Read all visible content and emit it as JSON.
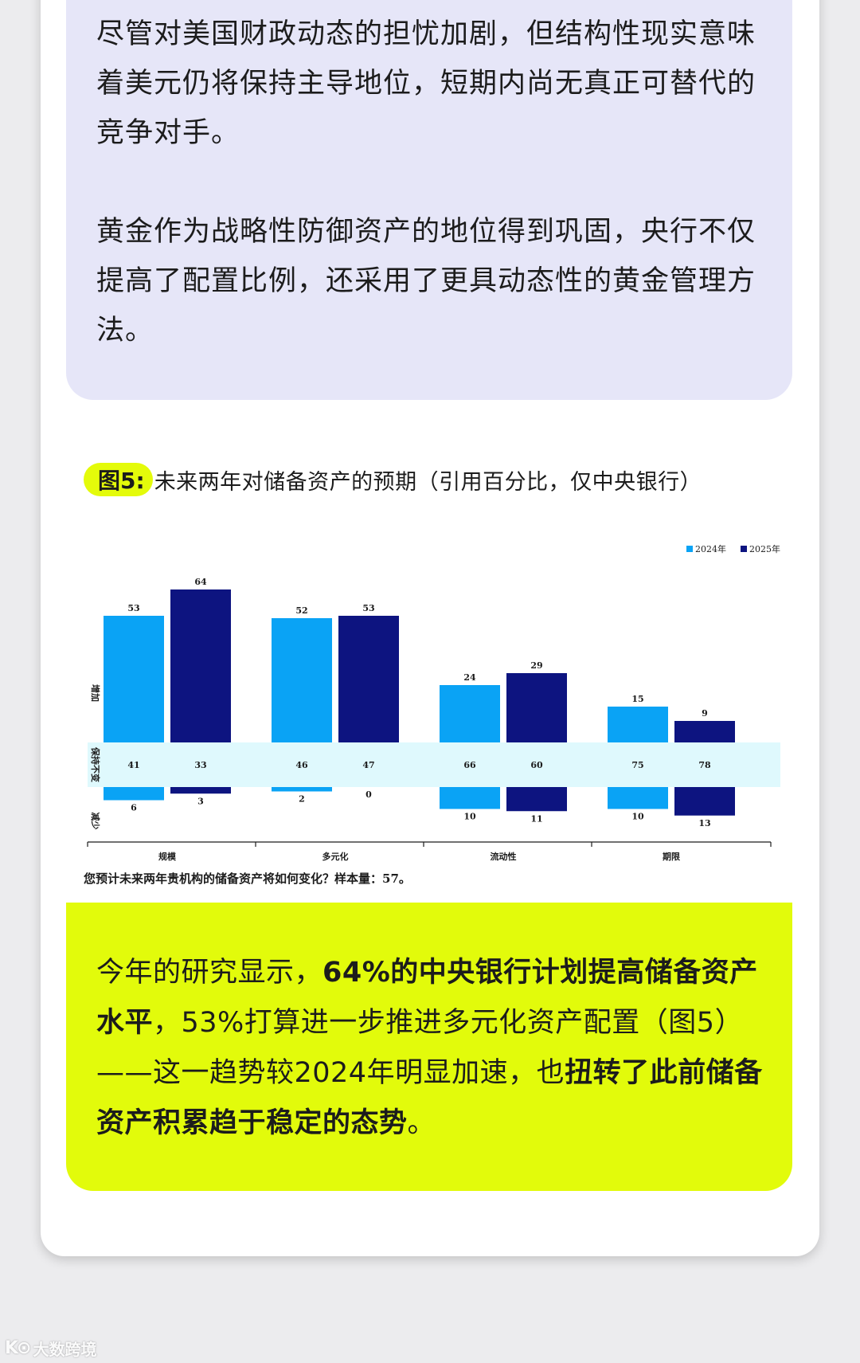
{
  "paragraphs": {
    "p1": "尽管对美国财政动态的担忧加剧，但结构性现实意味着美元仍将保持主导地位，短期内尚无真正可替代的竞争对手。",
    "p2": "黄金作为战略性防御资产的地位得到巩固，央行不仅提高了配置比例，还采用了更具动态性的黄金管理方法。"
  },
  "figure": {
    "label": "图5:",
    "title": "未来两年对储备资产的预期（引用百分比，仅中央银行）",
    "note": "您预计未来两年贵机构的储备资产将如何变化？样本量：57。"
  },
  "chart_data": {
    "type": "bar",
    "categories": [
      "规模",
      "多元化",
      "流动性",
      "期限"
    ],
    "row_labels": [
      "增加",
      "保持不变",
      "减少"
    ],
    "series": [
      {
        "name": "2024年",
        "color": "#0aa3f5",
        "increase": [
          53,
          52,
          24,
          15
        ],
        "unchanged": [
          41,
          46,
          66,
          75
        ],
        "decrease": [
          6,
          2,
          10,
          10
        ]
      },
      {
        "name": "2025年",
        "color": "#0d1480",
        "increase": [
          64,
          53,
          29,
          9
        ],
        "unchanged": [
          33,
          47,
          60,
          78
        ],
        "decrease": [
          3,
          0,
          11,
          13
        ]
      }
    ],
    "band_color": "#dff9fd",
    "legend_position": "top-right"
  },
  "highlight": {
    "t1": "今年的研究显示，",
    "b1": "64%的中央银行计划提高储备资产水平",
    "t2": "，53%打算进一步推进多元化资产配置（图5）——这一趋势较2024年明显加速，也",
    "b2": "扭转了此前储备资产积累趋于稳定的态势",
    "t3": "。"
  },
  "watermark": {
    "logo": "K⊙",
    "text": "大数跨境"
  }
}
